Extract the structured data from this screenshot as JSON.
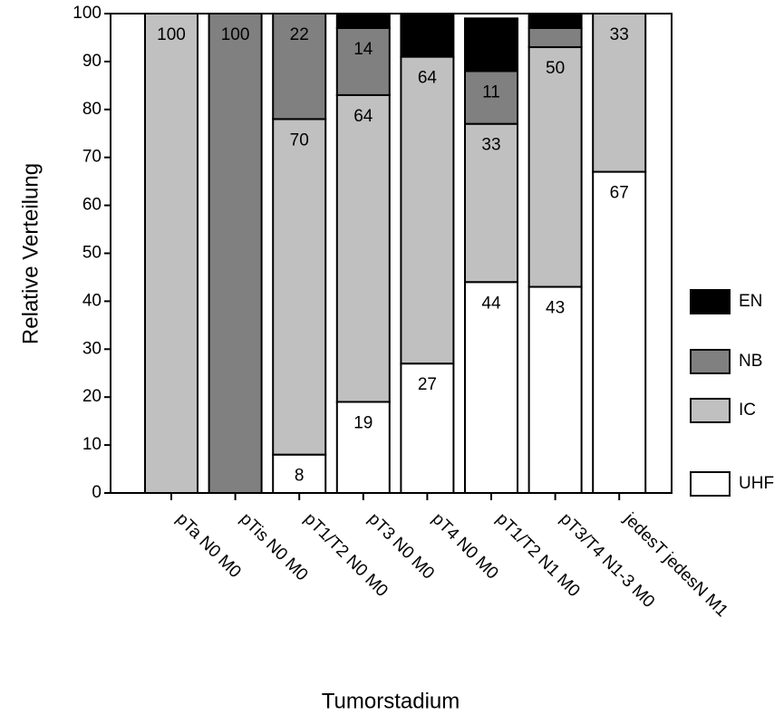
{
  "chart_data": {
    "type": "stacked_bar",
    "y_label": "Relative Verteilung",
    "x_label": "Tumorstadium",
    "categories": [
      "pTa N0 M0",
      "pTis N0 M0",
      "pT1/T2 N0 M0",
      "pT3 N0 M0",
      "pT4 N0 M0",
      "pT1/T2 N1 M0",
      "pT3/T4 N1-3 M0",
      "jedesT jedesN M1"
    ],
    "series": [
      {
        "name": "UHF",
        "color": "#ffffff",
        "values": [
          0,
          0,
          8,
          19,
          27,
          44,
          43,
          67
        ],
        "value_labels": [
          null,
          null,
          "8",
          "19",
          "27",
          "44",
          "43",
          "67"
        ]
      },
      {
        "name": "IC",
        "color": "#c0c0c0",
        "values": [
          100,
          0,
          70,
          64,
          64,
          33,
          50,
          33
        ],
        "value_labels": [
          "100",
          null,
          "70",
          "64",
          "64",
          "33",
          "50",
          "33"
        ]
      },
      {
        "name": "NB",
        "color": "#808080",
        "values": [
          0,
          100,
          22,
          14,
          0,
          11,
          4,
          0
        ],
        "value_labels": [
          null,
          "100",
          "22",
          "14",
          null,
          "11",
          null,
          null
        ]
      },
      {
        "name": "EN",
        "color": "#000000",
        "values": [
          0,
          0,
          0,
          3,
          9,
          11,
          3,
          0
        ],
        "value_labels": [
          null,
          null,
          null,
          null,
          null,
          null,
          null,
          null
        ]
      }
    ],
    "ylim": [
      0,
      100
    ],
    "yticks": [
      0,
      10,
      20,
      30,
      40,
      50,
      60,
      70,
      80,
      90,
      100
    ]
  }
}
